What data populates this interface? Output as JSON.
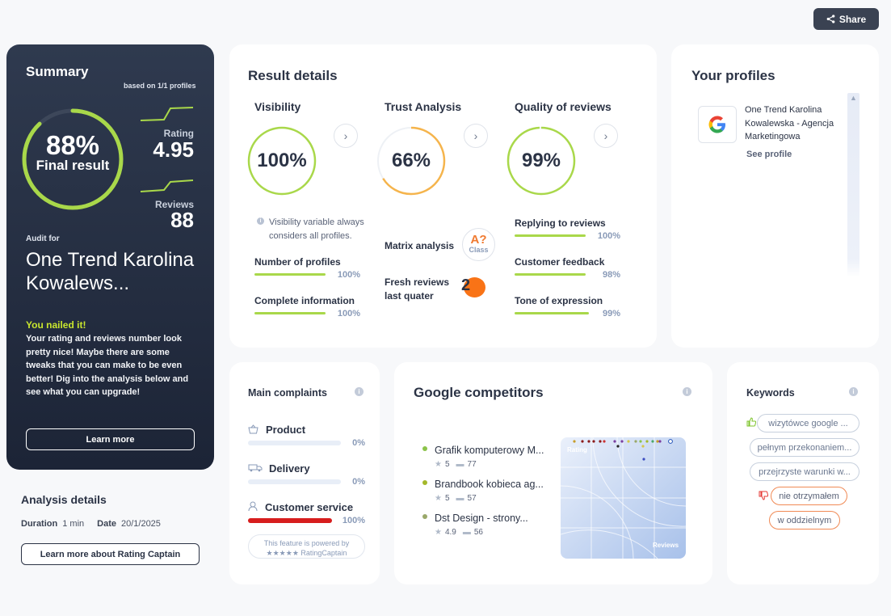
{
  "header": {
    "share_label": "Share",
    "share_icon": "share-icon"
  },
  "summary": {
    "title": "Summary",
    "based_on": "based on 1/1 profiles",
    "final_pct": "88%",
    "final_value": 0.88,
    "final_label": "Final result",
    "rating_label": "Rating",
    "rating_value": "4.95",
    "reviews_label": "Reviews",
    "reviews_value": "88",
    "audit_for": "Audit for",
    "audit_name": "One Trend Karolina Kowalews...",
    "nailed_title": "You nailed it!",
    "nailed_body": "Your rating and reviews number look pretty nice! Maybe there are some tweaks that you can make to be even better! Dig into the analysis below and see what you can upgrade!",
    "learn_more": "Learn more",
    "accent": "#a9d84a"
  },
  "analysis_details": {
    "title": "Analysis details",
    "duration_label": "Duration",
    "duration_value": "1 min",
    "date_label": "Date",
    "date_value": "20/1/2025",
    "button": "Learn more about Rating Captain"
  },
  "result_details": {
    "title": "Result details",
    "visibility": {
      "title": "Visibility",
      "pct": "100%",
      "value": 1.0,
      "note": "Visibility variable always considers all profiles.",
      "metrics": [
        {
          "label": "Number of profiles",
          "pct": "100%",
          "value": 1.0
        },
        {
          "label": "Complete information",
          "pct": "100%",
          "value": 1.0
        }
      ]
    },
    "trust": {
      "title": "Trust Analysis",
      "pct": "66%",
      "value": 0.66,
      "matrix_label": "Matrix analysis",
      "matrix_class_top": "A?",
      "matrix_class_bottom": "Class",
      "fresh_label": "Fresh reviews last quater",
      "fresh_value": "2"
    },
    "quality": {
      "title": "Quality of reviews",
      "pct": "99%",
      "value": 0.99,
      "metrics": [
        {
          "label": "Replying to reviews",
          "pct": "100%",
          "value": 1.0
        },
        {
          "label": "Customer feedback",
          "pct": "98%",
          "value": 0.98
        },
        {
          "label": "Tone of expression",
          "pct": "99%",
          "value": 0.99
        }
      ]
    }
  },
  "profiles": {
    "title": "Your profiles",
    "items": [
      {
        "icon": "google-logo-icon",
        "name": "One Trend Karolina Kowalewska - Agencja Marketingowa",
        "link": "See profile"
      }
    ]
  },
  "complaints": {
    "title": "Main complaints",
    "items": [
      {
        "label": "Product",
        "pct": "0%",
        "value": 0,
        "icon": "basket-icon"
      },
      {
        "label": "Delivery",
        "pct": "0%",
        "value": 0,
        "icon": "truck-icon"
      },
      {
        "label": "Customer service",
        "pct": "100%",
        "value": 1.0,
        "icon": "person-icon"
      }
    ],
    "powered_line1": "This feature is powered by",
    "powered_line2": "★★★★★ RatingCaptain"
  },
  "competitors": {
    "title": "Google competitors",
    "items": [
      {
        "name": "Grafik komputerowy M...",
        "rating": "5",
        "reviews": "77",
        "color": "#8bc34a"
      },
      {
        "name": "Brandbook kobieca ag...",
        "rating": "5",
        "reviews": "57",
        "color": "#a4b82a"
      },
      {
        "name": "Dst Design - strony...",
        "rating": "4.9",
        "reviews": "56",
        "color": "#9aa86a"
      }
    ],
    "chart_x_label": "Reviews",
    "chart_y_label": "Rating"
  },
  "keywords": {
    "title": "Keywords",
    "positive": [
      "wizytówce google ...",
      "pełnym przekonaniem...",
      "przejrzyste warunki w..."
    ],
    "negative": [
      "nie otrzymałem",
      "w oddzielnym"
    ],
    "positive_icon": "thumbs-up-icon",
    "negative_icon": "thumbs-down-icon"
  }
}
